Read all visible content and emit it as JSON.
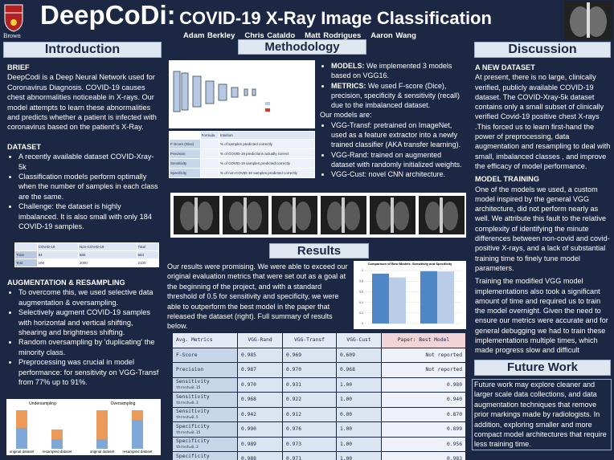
{
  "header": {
    "institution": "Brown",
    "title_main": "DeepCoDi:",
    "title_rest": "COVID-19 X-Ray Image Classification",
    "authors": [
      "Adam Berkley",
      "Chris Cataldo",
      "Matt Rodrigues",
      "Aaron Wang"
    ]
  },
  "introduction": {
    "heading": "Introduction",
    "brief_heading": "BRIEF",
    "brief": "DeepCodi is a Deep Neural Network used for Coronavirus Diagnosis. COVID-19 causes chest abnormalities noticeable in X-rays. Our model attempts to learn these abnormalities and predicts whether a patient is infected with coronavirus based on the patient's X-Ray.",
    "dataset_heading": "DATASET",
    "dataset_bullets": [
      "A recently available dataset COVID-Xray-5k",
      "Classification models perform optimally when the number of samples in each class are the same.",
      "Challenge: the dataset is highly imbalanced. It is also small with only 184 COVID-19 samples."
    ],
    "dataset_table": {
      "header": [
        "COVID-19",
        "Non-COVID-19",
        "Total"
      ],
      "rows": [
        {
          "label": "Train",
          "values": [
            "84",
            "580",
            "664"
          ]
        },
        {
          "label": "Test",
          "values": [
            "100",
            "2000",
            "2100"
          ]
        }
      ]
    },
    "aug_heading": "AUGMENTATION & RESAMPLING",
    "aug_bullets": [
      "To overcome this,  we used selective data augmentation & oversampling.",
      "Selectively augment COVID-19 samples with horizontal and vertical shifting, shearing and brightness shifting.",
      "Random oversampling by 'duplicating' the minority class.",
      "Preprocessing was crucial in model performance:  for sensitivity on VGG-Transf from 77% up to  91%."
    ],
    "resampling_figure": {
      "titles": [
        "Undersampling",
        "Oversampling"
      ],
      "labels": [
        "original dataset",
        "resampled dataset"
      ]
    }
  },
  "methodology": {
    "heading": "Methodology",
    "metrics_table": {
      "header": [
        "Formula",
        "Intuition"
      ],
      "rows": [
        {
          "name": "F-Score (Dice)",
          "intuition": "% of samples predicted correctly"
        },
        {
          "name": "Precision",
          "intuition": "% of COVID-19 predictions actually correct"
        },
        {
          "name": "Sensitivity",
          "intuition": "% of COVID-19 samples predicted correctly"
        },
        {
          "name": "Specificity",
          "intuition": "% of non-COVID-19 samples predicted correctly"
        }
      ]
    },
    "bullets": [
      {
        "bold": "MODELS:",
        "text": "We implemented 3 models based on VGG16."
      },
      {
        "bold": "METRICS:",
        "text": "We used F-score (Dice), precision, specificity & sensitivity (recall) due to the imbalanced dataset."
      }
    ],
    "models_intro": "Our  models are:",
    "models": [
      "VGG-Transf: pretrained on ImageNet, used as a feature extractor into a newly trained classifier (AKA transfer learning).",
      "VGG-Rand: trained on augmented  dataset with randomly initialized weights.",
      "VGG-Cust: novel CNN architecture."
    ]
  },
  "results": {
    "heading": "Results",
    "text": "Our results were  promising.  We were able to exceed our original evaluation metrics that were set out as a goal at the beginning of the project, and with a standard threshold of 0.5 for sensitivity and specificity, we were able to outperform the best model in the paper that released the dataset (right). Full summary of results below.",
    "table": {
      "header": [
        "Avg. Metrics",
        "VGG-Rand",
        "VGG-Transf",
        "VGG-Cust",
        "Paper: Best Model"
      ],
      "rows": [
        {
          "metric": "F-Score",
          "values": [
            "0.985",
            "0.969",
            "0.609",
            "Not reported"
          ]
        },
        {
          "metric": "Precision",
          "values": [
            "0.987",
            "0.970",
            "0.968",
            "Not reported"
          ]
        },
        {
          "metric": "Sensitivity",
          "thresh": "thresh=0.15",
          "values": [
            "0.970",
            "0.931",
            "1.00",
            "0.980"
          ]
        },
        {
          "metric": "Sensitivity",
          "thresh": "thresh=0.3",
          "values": [
            "0.968",
            "0.922",
            "1.00",
            "0.940"
          ]
        },
        {
          "metric": "Sensitivity",
          "thresh": "thresh=0.5",
          "values": [
            "0.942",
            "0.912",
            "0.00",
            "0.870"
          ]
        },
        {
          "metric": "Specificity",
          "thresh": "thresh=0.15",
          "values": [
            "0.990",
            "0.976",
            "1.00",
            "0.899"
          ]
        },
        {
          "metric": "Specificity",
          "thresh": "thresh=0.3",
          "values": [
            "0.989",
            "0.973",
            "1.00",
            "0.956"
          ]
        },
        {
          "metric": "Specificity",
          "thresh": "thresh=0.5",
          "values": [
            "0.988",
            "0.971",
            "1.00",
            "0.983"
          ]
        }
      ]
    }
  },
  "chart_data": {
    "type": "bar",
    "title": "Comparison of Best Models: Sensitivity and Specificity",
    "categories": [
      null,
      null
    ],
    "series": [
      {
        "color": "#4f86c6",
        "values": [
          0.942,
          0.988
        ]
      },
      {
        "color": "#b9cde8",
        "values": [
          0.87,
          0.983
        ]
      }
    ],
    "ylim": [
      0,
      1
    ],
    "yticks": [
      0,
      0.2,
      0.4,
      0.6,
      0.8,
      1
    ],
    "grid": true
  },
  "discussion": {
    "heading": "Discussion",
    "dataset_heading": "A NEW DATASET",
    "dataset_text": "At present, there is no large, clinically verified, publicly available COVID-19 dataset. The COVID-Xray-5k dataset contains only a small subset of clinically verified Covid-19 positive chest X-rays .This forced us to learn first-hand the power of preprocessing, data augmentation and resampling to deal with small, imbalanced classes , and improve the efficacy of model performance.",
    "training_heading": "MODEL TRAINING",
    "training_text": "One of the models we used, a custom model inspired by the general VGG architecture, did not perform nearly as well. We attribute this fault to the relative complexity of identifying the minute differences between non-covid and covid-positive X-rays, and a lack of substantial training time to finely tune model parameters.",
    "training_text2": "Training the modified VGG model implementations also took a significant amount of time and required us to train the model overnight. Given the need to ensure our metrics were accurate and for general debugging we had to train these implementations multiple times, which made progress slow and difficult"
  },
  "future_work": {
    "heading": "Future Work",
    "text": "Future work may explore cleaner and larger scale data collections, and data augmentation techniques that remove prior markings made by radiologists. In addition, exploring smaller and more compact model architectures that require less training time."
  }
}
